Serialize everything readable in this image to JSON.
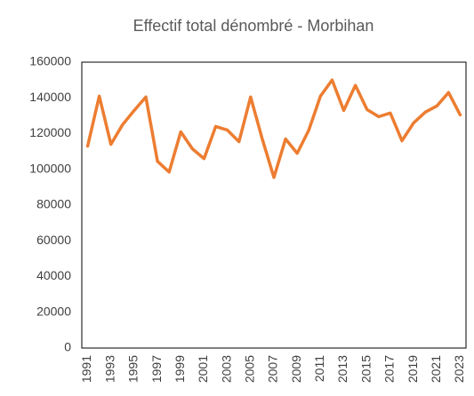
{
  "chart_data": {
    "type": "line",
    "title": "Effectif total dénombré - Morbihan",
    "categories": [
      "1991",
      null,
      "1993",
      null,
      "1995",
      null,
      "1997",
      null,
      "1999",
      null,
      "2001",
      null,
      "2003",
      null,
      "2005",
      null,
      "2007",
      null,
      "2009",
      null,
      "2011",
      null,
      "2013",
      null,
      "2015",
      null,
      "2017",
      null,
      "2019",
      null,
      "2021",
      null,
      "2023"
    ],
    "series": [
      {
        "name": "Effectif total dénombré",
        "color": "#ed7d31",
        "values": [
          113000,
          141000,
          114000,
          125000,
          133000,
          140500,
          104500,
          98500,
          121000,
          111500,
          106000,
          124000,
          122000,
          115500,
          140500,
          117000,
          95500,
          117000,
          109000,
          122000,
          141000,
          150000,
          133000,
          147000,
          133500,
          129500,
          131500,
          116000,
          126000,
          132000,
          135500,
          143000,
          130500
        ]
      }
    ],
    "ylim": [
      0,
      160000
    ],
    "yticks": [
      0,
      20000,
      40000,
      60000,
      80000,
      100000,
      120000,
      140000,
      160000
    ],
    "grid": false
  }
}
